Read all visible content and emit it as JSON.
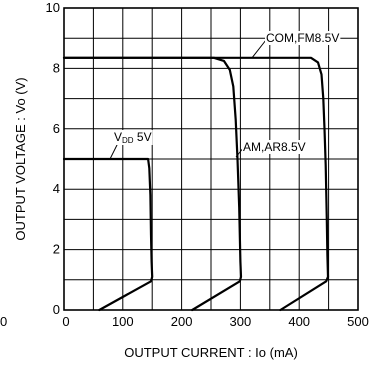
{
  "chart_data": {
    "type": "line",
    "xlabel": "OUTPUT CURRENT : Io (mA)",
    "ylabel": "OUTPUT VOLTAGE : Vo (V)",
    "xlim": [
      0,
      500
    ],
    "ylim": [
      0,
      10
    ],
    "x_ticks": [
      0,
      100,
      200,
      300,
      400,
      500
    ],
    "y_ticks": [
      0,
      2,
      4,
      6,
      8,
      10
    ],
    "x_tick_labels": [
      "0",
      "100",
      "200",
      "300",
      "400",
      "500"
    ],
    "y_tick_labels": [
      "0",
      "2",
      "4",
      "6",
      "8",
      "10"
    ],
    "x_minor_step": 50,
    "y_minor_step": 1,
    "grid": true,
    "left_edge_label": "0",
    "series": [
      {
        "name": "VDD 5V",
        "name_main": "V",
        "name_sub": "DD",
        "name_tail": " 5V",
        "x": [
          0,
          143,
          145,
          147,
          148,
          149,
          150,
          148,
          60
        ],
        "y": [
          5.0,
          5.0,
          4.7,
          3.8,
          2.5,
          1.6,
          1.1,
          0.95,
          0
        ]
      },
      {
        "name": "AM,AR8.5V",
        "x": [
          0,
          255,
          272,
          282,
          288,
          292,
          295,
          298,
          300,
          301,
          299,
          218
        ],
        "y": [
          8.35,
          8.35,
          8.25,
          7.95,
          7.4,
          6.3,
          5.0,
          3.4,
          1.6,
          1.1,
          0.95,
          0
        ]
      },
      {
        "name": "COM,FM8.5V",
        "x": [
          0,
          420,
          432,
          438,
          441,
          443,
          445,
          447,
          448,
          449,
          446,
          368
        ],
        "y": [
          8.35,
          8.35,
          8.2,
          7.8,
          7.0,
          6.0,
          4.8,
          3.0,
          1.8,
          1.1,
          0.95,
          0
        ]
      }
    ],
    "annotations": [
      {
        "text": "COM,FM8.5V",
        "series": 2
      },
      {
        "text": "AM,AR8.5V",
        "series": 1
      },
      {
        "text": "VDD 5V",
        "series": 0
      }
    ]
  }
}
